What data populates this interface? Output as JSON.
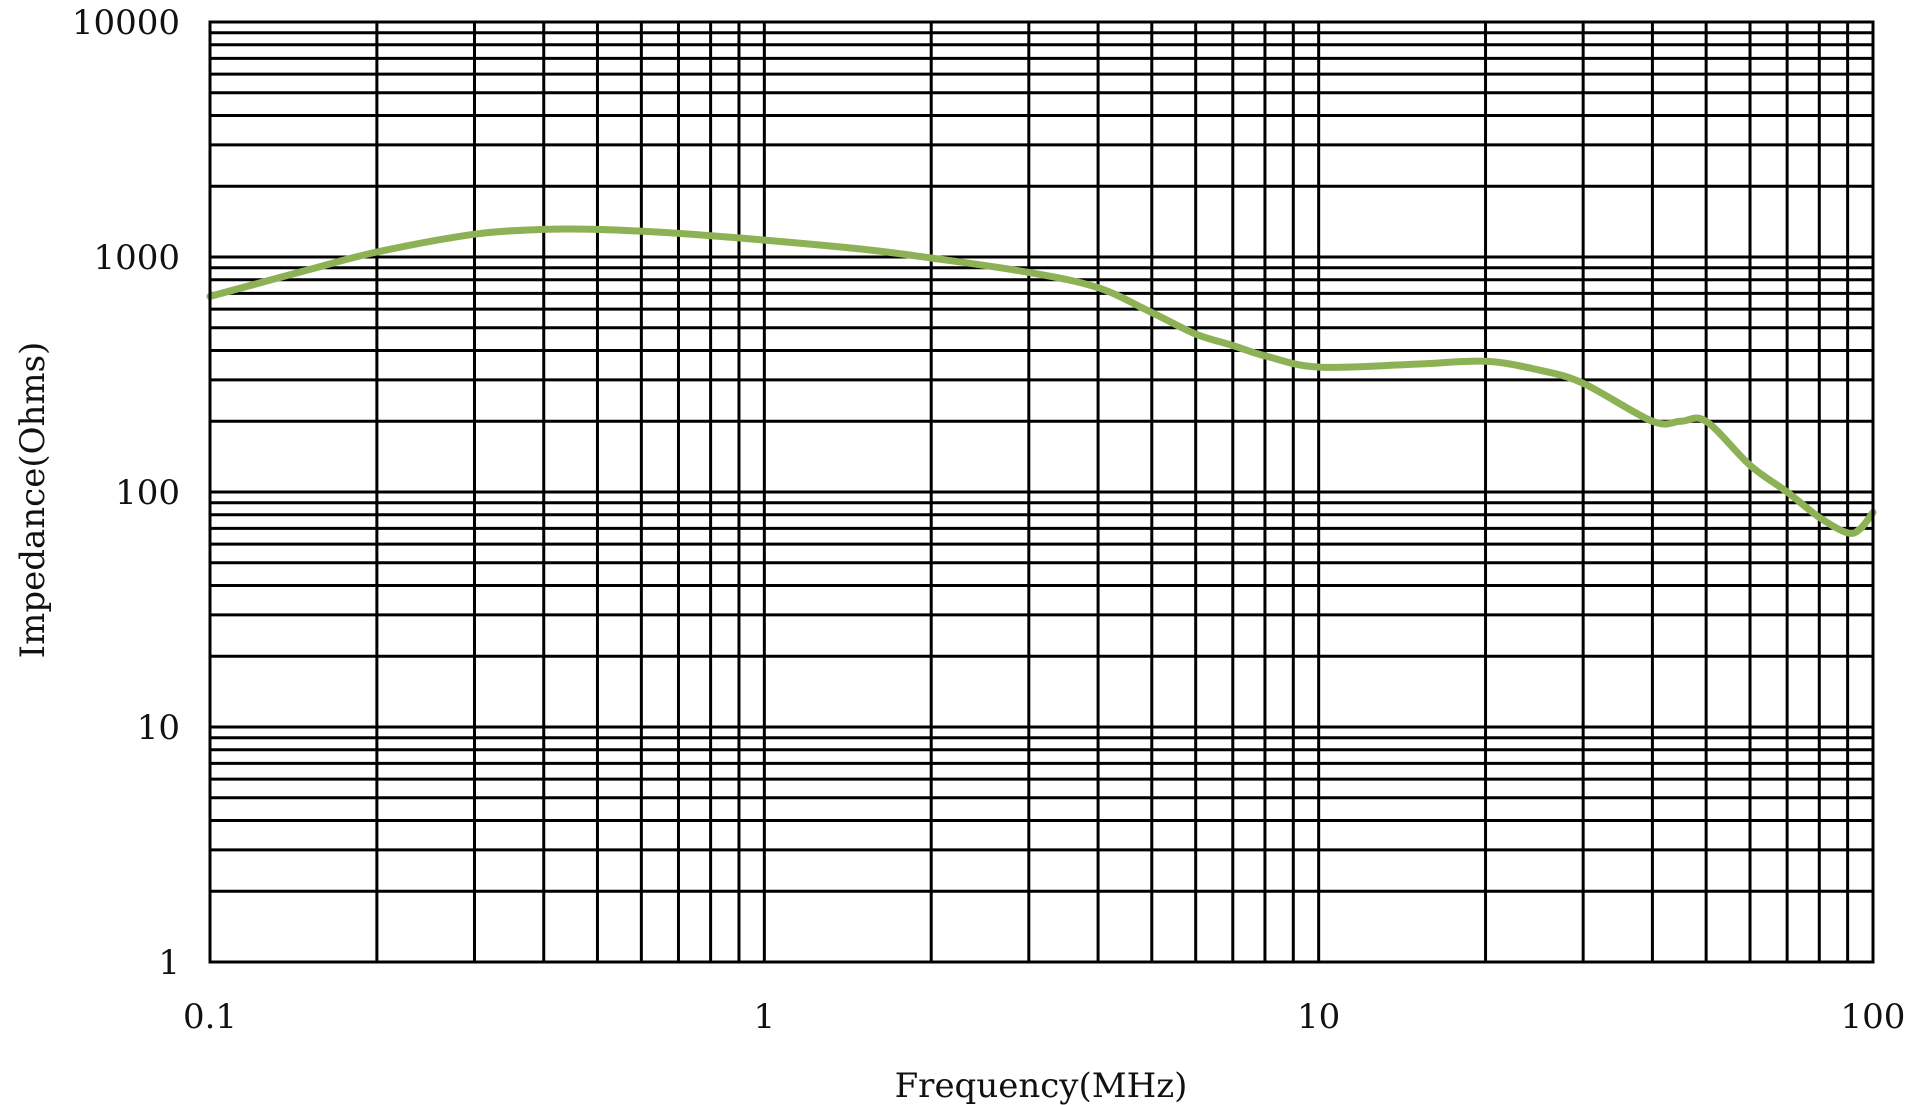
{
  "chart_data": {
    "type": "line",
    "title": "",
    "xlabel": "Frequency(MHz)",
    "ylabel": "Impedance(Ohms)",
    "xscale": "log",
    "yscale": "log",
    "xlim": [
      0.1,
      100
    ],
    "ylim": [
      1,
      10000
    ],
    "grid": true,
    "legend": "none",
    "x_tick_labels": [
      "0.1",
      "1",
      "10",
      "100"
    ],
    "y_tick_labels": [
      "1",
      "10",
      "100",
      "1000",
      "10000"
    ],
    "series": [
      {
        "color": "#8db255",
        "x": [
          0.1,
          0.15,
          0.2,
          0.3,
          0.4,
          0.5,
          0.7,
          1.0,
          1.5,
          2.0,
          3.0,
          4.0,
          5.0,
          6.0,
          7.0,
          8.0,
          10.0,
          15.0,
          20.0,
          25.0,
          30.0,
          40.0,
          45.0,
          50.0,
          60.0,
          70.0,
          80.0,
          90.0,
          95.0,
          100.0
        ],
        "y": [
          680,
          880,
          1050,
          1250,
          1310,
          1310,
          1260,
          1180,
          1080,
          990,
          860,
          740,
          580,
          470,
          420,
          380,
          340,
          350,
          360,
          330,
          290,
          200,
          200,
          200,
          130,
          100,
          78,
          67,
          70,
          82
        ]
      }
    ]
  }
}
